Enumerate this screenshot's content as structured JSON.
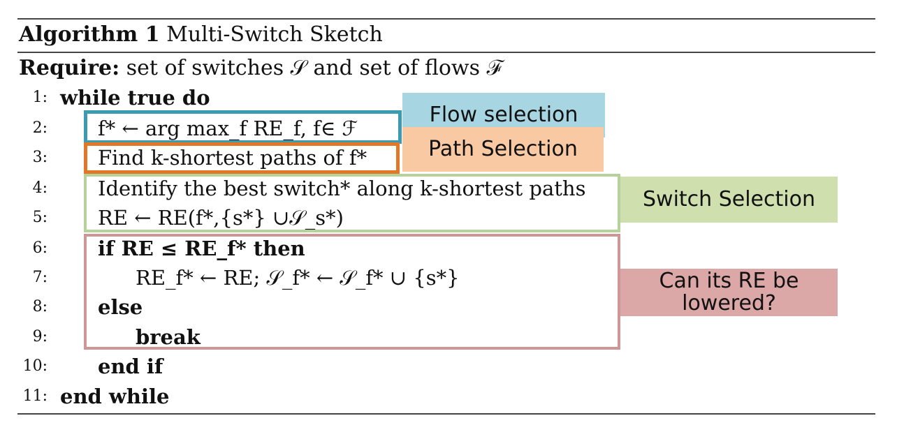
{
  "algorithm": {
    "label": "Algorithm 1",
    "name": "Multi-Switch Sketch",
    "require_label": "Require:",
    "require_text": " set of switches 𝒮 and set of flows ℱ"
  },
  "lines": [
    {
      "num": "1:",
      "text": "while true do"
    },
    {
      "num": "2:",
      "text": "f* ← arg max_f RE_f, f∈ ℱ"
    },
    {
      "num": "3:",
      "text": "Find k-shortest paths of f*"
    },
    {
      "num": "4:",
      "text": "Identify the best switch* along k-shortest paths"
    },
    {
      "num": "5:",
      "text": "RE ← RE(f*,{s*} ∪𝒮_s*)"
    },
    {
      "num": "6:",
      "text": "if RE ≤ RE_f* then"
    },
    {
      "num": "7:",
      "text": "RE_f* ← RE; 𝒮_f* ← 𝒮_f* ∪ {s*}"
    },
    {
      "num": "8:",
      "text": "else"
    },
    {
      "num": "9:",
      "text": "break"
    },
    {
      "num": "10:",
      "text": "end if"
    },
    {
      "num": "11:",
      "text": "end while"
    }
  ],
  "annotations": {
    "flow": "Flow selection",
    "path": "Path Selection",
    "switch": "Switch Selection",
    "re_line1": "Can its RE be",
    "re_line2": "lowered?"
  },
  "colors": {
    "flow": "#3a9cb0",
    "path": "#e07828",
    "switch": "#b5d29a",
    "re": "#cf9696"
  }
}
